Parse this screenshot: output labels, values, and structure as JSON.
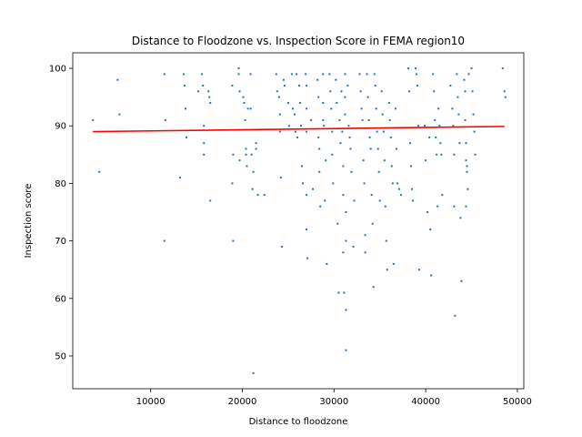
{
  "chart_data": {
    "type": "scatter",
    "title": "Distance to Floodzone vs. Inspection Score in FEMA region10",
    "xlabel": "Distance to floodzone",
    "ylabel": "Inspection score",
    "xlim": [
      1500,
      50700
    ],
    "ylim": [
      44.3,
      102.7
    ],
    "xticks": [
      10000,
      20000,
      30000,
      40000,
      50000
    ],
    "yticks": [
      50,
      60,
      70,
      80,
      90,
      100
    ],
    "grid": false,
    "colors": {
      "points": "#1f77b4",
      "trend": "#ff0000"
    },
    "trendline": {
      "x": [
        3700,
        48600
      ],
      "y": [
        89.0,
        89.9
      ]
    },
    "series": [
      {
        "points": [
          [
            3700,
            91
          ],
          [
            4400,
            82
          ],
          [
            6400,
            98
          ],
          [
            6600,
            92
          ],
          [
            11500,
            99
          ],
          [
            11500,
            70
          ],
          [
            11600,
            91
          ],
          [
            13200,
            81
          ],
          [
            13600,
            99
          ],
          [
            13700,
            97
          ],
          [
            13800,
            93
          ],
          [
            13900,
            88
          ],
          [
            15200,
            96
          ],
          [
            15600,
            99
          ],
          [
            15700,
            97
          ],
          [
            15800,
            90
          ],
          [
            15800,
            87
          ],
          [
            15800,
            85
          ],
          [
            16300,
            96
          ],
          [
            16400,
            95
          ],
          [
            16500,
            94
          ],
          [
            16500,
            77
          ],
          [
            18900,
            97
          ],
          [
            18900,
            80
          ],
          [
            19000,
            85
          ],
          [
            19000,
            70
          ],
          [
            19600,
            100
          ],
          [
            19600,
            99
          ],
          [
            19700,
            96
          ],
          [
            19700,
            84
          ],
          [
            20100,
            95
          ],
          [
            20200,
            94
          ],
          [
            20300,
            91
          ],
          [
            20400,
            85
          ],
          [
            20400,
            86
          ],
          [
            20500,
            83
          ],
          [
            20600,
            93
          ],
          [
            20900,
            99
          ],
          [
            20900,
            93
          ],
          [
            21000,
            85
          ],
          [
            21100,
            79
          ],
          [
            21200,
            82
          ],
          [
            21200,
            47
          ],
          [
            21500,
            86
          ],
          [
            21500,
            87
          ],
          [
            21700,
            78
          ],
          [
            22400,
            78
          ],
          [
            23700,
            99
          ],
          [
            23800,
            96
          ],
          [
            24000,
            95
          ],
          [
            24100,
            92
          ],
          [
            24100,
            89
          ],
          [
            24200,
            81
          ],
          [
            24300,
            69
          ],
          [
            24500,
            98
          ],
          [
            24600,
            97
          ],
          [
            25000,
            94
          ],
          [
            25100,
            90
          ],
          [
            25400,
            99
          ],
          [
            25500,
            93
          ],
          [
            25700,
            92
          ],
          [
            25800,
            89
          ],
          [
            25900,
            99
          ],
          [
            26000,
            88
          ],
          [
            26200,
            97
          ],
          [
            26300,
            94
          ],
          [
            26400,
            90
          ],
          [
            26500,
            83
          ],
          [
            26600,
            80
          ],
          [
            26900,
            99
          ],
          [
            27000,
            97
          ],
          [
            27000,
            93
          ],
          [
            27000,
            89
          ],
          [
            27000,
            78
          ],
          [
            27000,
            72
          ],
          [
            27100,
            67
          ],
          [
            27500,
            91
          ],
          [
            27700,
            79
          ],
          [
            28200,
            98
          ],
          [
            28300,
            95
          ],
          [
            28300,
            88
          ],
          [
            28400,
            86
          ],
          [
            28400,
            82
          ],
          [
            28500,
            76
          ],
          [
            28800,
            99
          ],
          [
            28800,
            94
          ],
          [
            28800,
            91
          ],
          [
            28900,
            90
          ],
          [
            29000,
            77
          ],
          [
            29100,
            84
          ],
          [
            29200,
            66
          ],
          [
            29500,
            99
          ],
          [
            29600,
            96
          ],
          [
            29700,
            93
          ],
          [
            29800,
            89
          ],
          [
            29800,
            85
          ],
          [
            29900,
            80
          ],
          [
            30200,
            98
          ],
          [
            30300,
            94
          ],
          [
            30400,
            73
          ],
          [
            30500,
            61
          ],
          [
            30600,
            91
          ],
          [
            30700,
            87
          ],
          [
            30800,
            96
          ],
          [
            30900,
            89
          ],
          [
            31000,
            83
          ],
          [
            31000,
            78
          ],
          [
            31000,
            68
          ],
          [
            31100,
            61
          ],
          [
            31200,
            99
          ],
          [
            31200,
            95
          ],
          [
            31200,
            92
          ],
          [
            31300,
            75
          ],
          [
            31300,
            70
          ],
          [
            31300,
            58
          ],
          [
            31300,
            51
          ],
          [
            31500,
            97
          ],
          [
            31600,
            90
          ],
          [
            31700,
            88
          ],
          [
            31800,
            86
          ],
          [
            31900,
            82
          ],
          [
            32100,
            69
          ],
          [
            32200,
            77
          ],
          [
            32800,
            99
          ],
          [
            32900,
            96
          ],
          [
            33000,
            93
          ],
          [
            33100,
            91
          ],
          [
            33200,
            84
          ],
          [
            33300,
            80
          ],
          [
            33400,
            71
          ],
          [
            33400,
            68
          ],
          [
            33600,
            99
          ],
          [
            33700,
            95
          ],
          [
            33800,
            91
          ],
          [
            33900,
            88
          ],
          [
            34000,
            86
          ],
          [
            34100,
            78
          ],
          [
            34200,
            73
          ],
          [
            34300,
            62
          ],
          [
            34400,
            99
          ],
          [
            34500,
            97
          ],
          [
            34600,
            93
          ],
          [
            34700,
            89
          ],
          [
            34800,
            86
          ],
          [
            34900,
            82
          ],
          [
            35000,
            77
          ],
          [
            35200,
            96
          ],
          [
            35300,
            92
          ],
          [
            35400,
            89
          ],
          [
            35500,
            84
          ],
          [
            35600,
            76
          ],
          [
            35700,
            70
          ],
          [
            35800,
            65
          ],
          [
            36000,
            94
          ],
          [
            36100,
            91
          ],
          [
            36200,
            88
          ],
          [
            36300,
            83
          ],
          [
            36400,
            80
          ],
          [
            36500,
            66
          ],
          [
            36700,
            93
          ],
          [
            36800,
            86
          ],
          [
            36900,
            80
          ],
          [
            37100,
            79
          ],
          [
            37300,
            78
          ],
          [
            38100,
            100
          ],
          [
            38200,
            96
          ],
          [
            38300,
            87
          ],
          [
            38400,
            83
          ],
          [
            38500,
            79
          ],
          [
            38600,
            77
          ],
          [
            38900,
            100
          ],
          [
            39000,
            99
          ],
          [
            39100,
            97
          ],
          [
            39200,
            90
          ],
          [
            39300,
            65
          ],
          [
            39900,
            90
          ],
          [
            40000,
            84
          ],
          [
            40200,
            75
          ],
          [
            40400,
            88
          ],
          [
            40500,
            72
          ],
          [
            40600,
            64
          ],
          [
            40800,
            99
          ],
          [
            40900,
            96
          ],
          [
            41000,
            91
          ],
          [
            41100,
            88
          ],
          [
            41200,
            85
          ],
          [
            41300,
            76
          ],
          [
            41400,
            93
          ],
          [
            41500,
            90
          ],
          [
            41600,
            87
          ],
          [
            41700,
            85
          ],
          [
            41800,
            78
          ],
          [
            42700,
            97
          ],
          [
            42900,
            93
          ],
          [
            43000,
            90
          ],
          [
            43100,
            85
          ],
          [
            43100,
            76
          ],
          [
            43200,
            57
          ],
          [
            43400,
            99
          ],
          [
            43500,
            95
          ],
          [
            43600,
            92
          ],
          [
            43700,
            87
          ],
          [
            43800,
            74
          ],
          [
            43900,
            63
          ],
          [
            44200,
            98
          ],
          [
            44300,
            96
          ],
          [
            44300,
            91
          ],
          [
            44400,
            87
          ],
          [
            44400,
            84
          ],
          [
            44400,
            76
          ],
          [
            44500,
            83
          ],
          [
            44500,
            82
          ],
          [
            44600,
            79
          ],
          [
            44700,
            99
          ],
          [
            45000,
            100
          ],
          [
            45100,
            96
          ],
          [
            45200,
            92
          ],
          [
            45300,
            89
          ],
          [
            45400,
            85
          ],
          [
            48400,
            100
          ],
          [
            48600,
            96
          ],
          [
            48700,
            95
          ]
        ]
      }
    ]
  }
}
